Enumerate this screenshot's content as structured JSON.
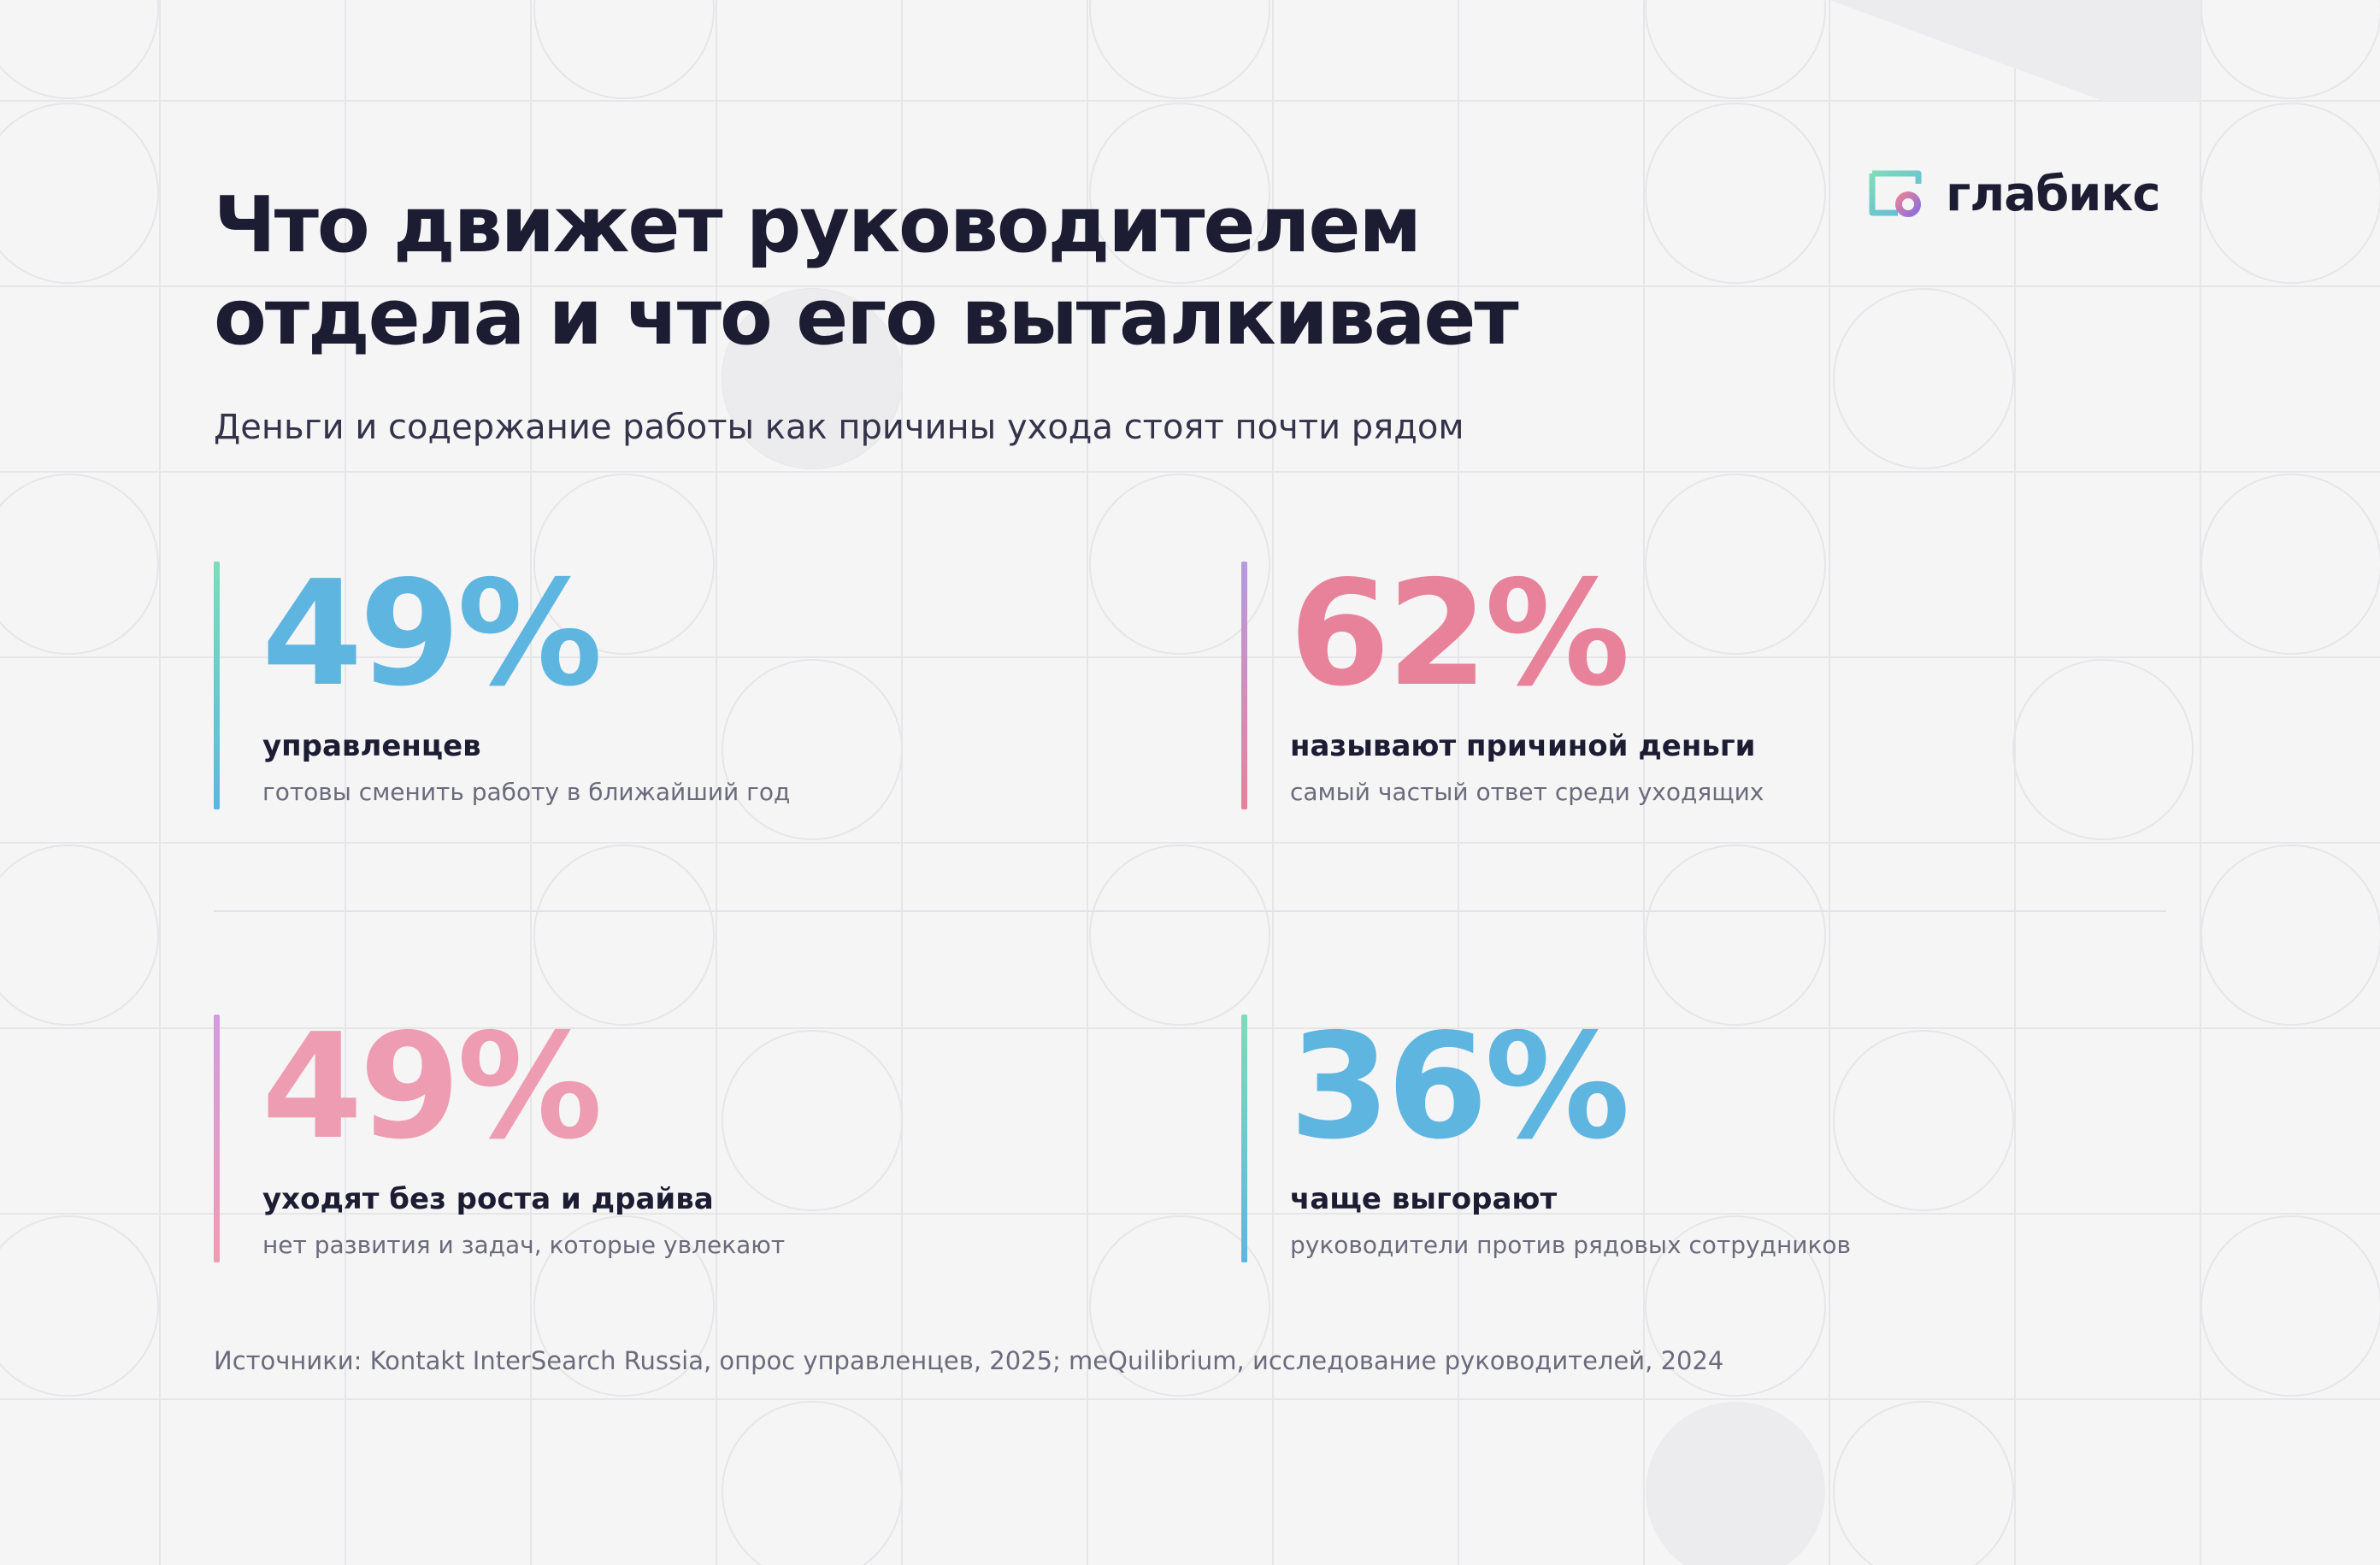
{
  "header": {
    "title_line1": "Что движет руководителем",
    "title_line2": "отдела и что его выталкивает",
    "subtitle": "Деньги и содержание работы как причины ухода стоят почти рядом"
  },
  "logo": {
    "icon": "glabiks-logo-icon",
    "text": "глабикс"
  },
  "stats": [
    {
      "value": "49%",
      "label": "управленцев",
      "note": "готовы сменить работу в ближайший год",
      "value_color": "#5eb5e0",
      "bar_colors": [
        "#7fdcb8",
        "#5eb5e0"
      ]
    },
    {
      "value": "62%",
      "label": "называют причиной деньги",
      "note": "самый частый ответ среди уходящих",
      "value_color": "#e8829a",
      "bar_colors": [
        "#b49be0",
        "#e8829a"
      ]
    },
    {
      "value": "49%",
      "label": "уходят без роста и драйва",
      "note": "нет развития и задач, которые увлекают",
      "value_color": "#ee9cb2",
      "bar_colors": [
        "#d49be0",
        "#ee9cb2"
      ]
    },
    {
      "value": "36%",
      "label": "чаще выгорают",
      "note": "руководители против рядовых сотрудников",
      "value_color": "#5eb5e0",
      "bar_colors": [
        "#7fdcb8",
        "#5eb5e0"
      ]
    }
  ],
  "footer": {
    "sources": "Источники: Kontakt InterSearch Russia, опрос управленцев, 2025; meQuilibrium, исследование руководителей, 2024"
  },
  "colors": {
    "background": "#f5f5f6",
    "text_dark": "#1c1c33",
    "text_muted": "#6b6b7c"
  }
}
